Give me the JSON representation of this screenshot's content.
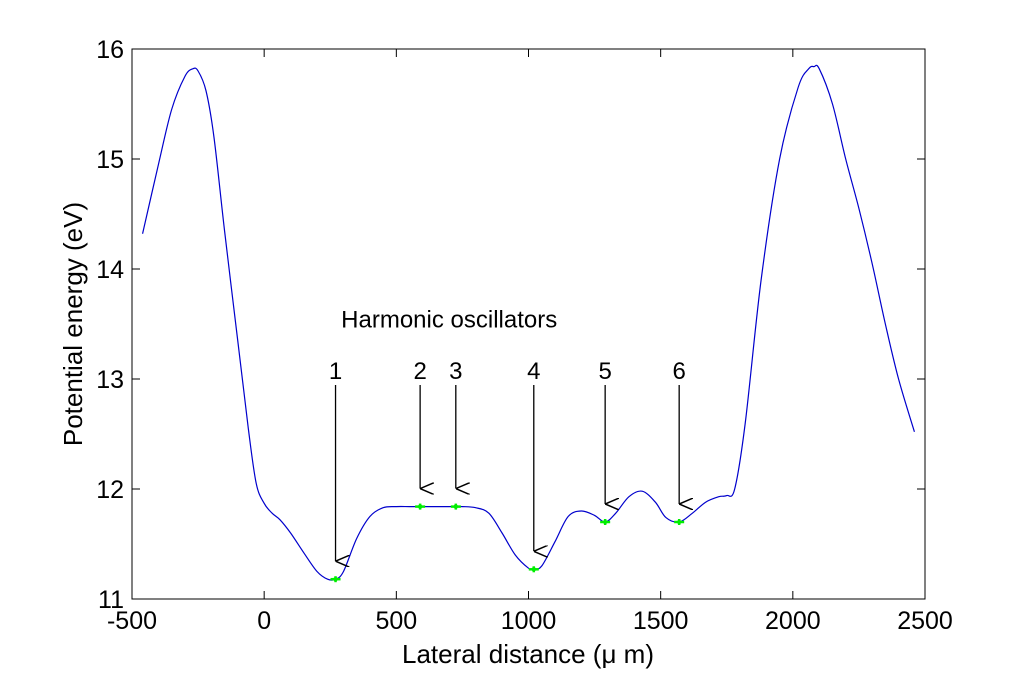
{
  "chart_data": {
    "type": "line",
    "title": "",
    "xlabel": "Lateral distance (μ m)",
    "ylabel": "Potential energy (eV)",
    "xlim": [
      -500,
      2500
    ],
    "ylim": [
      11,
      16
    ],
    "xticks": [
      -500,
      0,
      500,
      1000,
      1500,
      2000,
      2500
    ],
    "yticks": [
      11,
      12,
      13,
      14,
      15,
      16
    ],
    "xtick_labels": [
      "-500",
      "0",
      "500",
      "1000",
      "1500",
      "2000",
      "2500"
    ],
    "ytick_labels": [
      "11",
      "12",
      "13",
      "14",
      "15",
      "16"
    ],
    "grid": false,
    "line_color": "#0000cc",
    "marker_color": "#00ee00",
    "series": [
      {
        "x": [
          -460,
          -400,
          -350,
          -300,
          -270,
          -250,
          -220,
          -190,
          -150,
          -100,
          -60,
          -30,
          0,
          30,
          60,
          100,
          150,
          200,
          240,
          270,
          300,
          350,
          400,
          450,
          500,
          550,
          600,
          650,
          700,
          750,
          800,
          850,
          900,
          950,
          1000,
          1020,
          1050,
          1100,
          1150,
          1200,
          1250,
          1290,
          1330,
          1380,
          1430,
          1480,
          1520,
          1570,
          1620,
          1670,
          1720,
          1750,
          1780,
          1820,
          1880,
          1950,
          2020,
          2060,
          2080,
          2100,
          2150,
          2200,
          2250,
          2300,
          2350,
          2400,
          2460
        ],
        "y": [
          14.32,
          14.95,
          15.45,
          15.75,
          15.82,
          15.8,
          15.62,
          15.2,
          14.35,
          13.35,
          12.55,
          12.05,
          11.87,
          11.78,
          11.72,
          11.6,
          11.42,
          11.25,
          11.18,
          11.18,
          11.25,
          11.55,
          11.75,
          11.83,
          11.84,
          11.84,
          11.84,
          11.84,
          11.84,
          11.84,
          11.83,
          11.78,
          11.6,
          11.4,
          11.28,
          11.27,
          11.3,
          11.52,
          11.75,
          11.8,
          11.76,
          11.7,
          11.78,
          11.93,
          11.98,
          11.88,
          11.74,
          11.7,
          11.78,
          11.88,
          11.93,
          11.94,
          12.0,
          12.6,
          13.9,
          15.0,
          15.65,
          15.82,
          15.84,
          15.82,
          15.5,
          15.0,
          14.55,
          14.05,
          13.5,
          13.0,
          12.52
        ]
      }
    ],
    "markers": [
      {
        "label": "1",
        "x": 270,
        "y": 11.18,
        "label_y": 13.0
      },
      {
        "label": "2",
        "x": 590,
        "y": 11.84,
        "label_y": 13.0
      },
      {
        "label": "3",
        "x": 725,
        "y": 11.84,
        "label_y": 13.0
      },
      {
        "label": "4",
        "x": 1020,
        "y": 11.27,
        "label_y": 13.0
      },
      {
        "label": "5",
        "x": 1290,
        "y": 11.7,
        "label_y": 13.0
      },
      {
        "label": "6",
        "x": 1570,
        "y": 11.7,
        "label_y": 13.0
      }
    ],
    "annotations": [
      {
        "text": "Harmonic oscillators",
        "x": 700,
        "y": 13.47
      }
    ]
  }
}
